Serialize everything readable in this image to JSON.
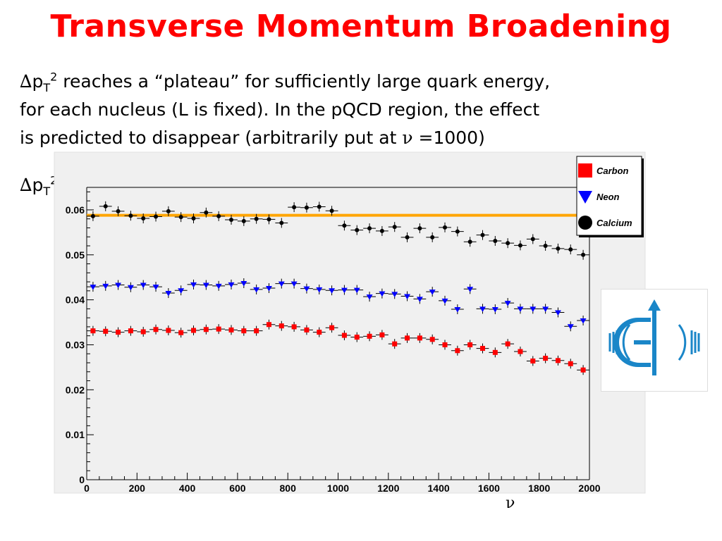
{
  "slide": {
    "title": "Transverse Momentum Broadening",
    "body_line1": "reaches a “plateau” for sufficiently large quark energy,",
    "body_line2": "for each nucleus (L is fixed). In the pQCD region, the effect",
    "body_line3_a": "is predicted to disappear (arbitrarily put at",
    "body_line3_b": "=1000)",
    "delta": "∆",
    "p": "p",
    "sub_T": "T",
    "sup_2": "2",
    "nu": "ν"
  },
  "colors": {
    "title": "#ff0000",
    "carbon": "#ff0000",
    "neon": "#0000ff",
    "calcium": "#000000",
    "plateau_line": "#ffa500",
    "plot_bg": "#f0f0f0",
    "logo_blue": "#1a86c8"
  },
  "chart_data": {
    "type": "scatter",
    "xlabel": "ν",
    "ylabel": "∆pT2",
    "xlim": [
      0,
      2000
    ],
    "ylim": [
      0,
      0.065
    ],
    "x_ticks": [
      "0",
      "200",
      "400",
      "600",
      "800",
      "1000",
      "1200",
      "1400",
      "1600",
      "1800",
      "2000"
    ],
    "x_tick_values": [
      0,
      200,
      400,
      600,
      800,
      1000,
      1200,
      1400,
      1600,
      1800,
      2000
    ],
    "y_ticks": [
      "0",
      "0.01",
      "0.02",
      "0.03",
      "0.04",
      "0.05",
      "0.06"
    ],
    "y_tick_values": [
      0,
      0.01,
      0.02,
      0.03,
      0.04,
      0.05,
      0.06
    ],
    "legend_position": "top-right",
    "plateau": {
      "y": 0.0588,
      "x_range": [
        0,
        2000
      ]
    },
    "x": [
      25,
      75,
      125,
      175,
      225,
      275,
      325,
      375,
      425,
      475,
      525,
      575,
      625,
      675,
      725,
      775,
      825,
      875,
      925,
      975,
      1025,
      1075,
      1125,
      1175,
      1225,
      1275,
      1325,
      1375,
      1425,
      1475,
      1525,
      1575,
      1625,
      1675,
      1725,
      1775,
      1825,
      1875,
      1925,
      1975
    ],
    "series": [
      {
        "name": "Carbon",
        "marker": "square",
        "values": [
          0.0331,
          0.033,
          0.0328,
          0.0331,
          0.0329,
          0.0334,
          0.0332,
          0.0327,
          0.0332,
          0.0334,
          0.0335,
          0.0333,
          0.0331,
          0.0331,
          0.0345,
          0.0342,
          0.034,
          0.0333,
          0.0328,
          0.0338,
          0.0321,
          0.0317,
          0.0319,
          0.0322,
          0.0302,
          0.0315,
          0.0315,
          0.0312,
          0.03,
          0.0287,
          0.03,
          0.0292,
          0.0283,
          0.0302,
          0.0285,
          0.0264,
          0.027,
          0.0265,
          0.0258,
          0.0244
        ]
      },
      {
        "name": "Neon",
        "marker": "triangle",
        "values": [
          0.0429,
          0.0431,
          0.0433,
          0.0428,
          0.0433,
          0.0429,
          0.0415,
          0.0421,
          0.0434,
          0.0433,
          0.0431,
          0.0434,
          0.0437,
          0.0423,
          0.0426,
          0.0436,
          0.0436,
          0.0425,
          0.0423,
          0.0421,
          0.0422,
          0.0422,
          0.0407,
          0.0414,
          0.0413,
          0.0408,
          0.0402,
          0.0418,
          0.0398,
          0.0379,
          0.0424,
          0.038,
          0.0379,
          0.0393,
          0.038,
          0.038,
          0.038,
          0.0372,
          0.0341,
          0.0354
        ]
      },
      {
        "name": "Calcium",
        "marker": "circle",
        "values": [
          0.0586,
          0.0608,
          0.0597,
          0.0587,
          0.0581,
          0.0585,
          0.0597,
          0.0584,
          0.0581,
          0.0594,
          0.0586,
          0.0578,
          0.0575,
          0.058,
          0.0579,
          0.0571,
          0.0606,
          0.0605,
          0.0607,
          0.0598,
          0.0565,
          0.0555,
          0.0559,
          0.0553,
          0.0562,
          0.0539,
          0.0559,
          0.0539,
          0.0561,
          0.0552,
          0.0529,
          0.0544,
          0.0531,
          0.0526,
          0.0521,
          0.0535,
          0.052,
          0.0514,
          0.0512,
          0.05
        ]
      }
    ]
  }
}
